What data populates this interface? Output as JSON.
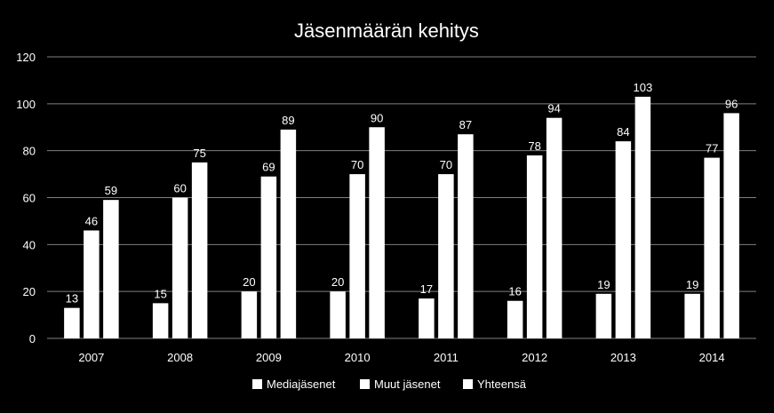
{
  "chart_data": {
    "type": "bar",
    "title": "Jäsenmäärän kehitys",
    "xlabel": "",
    "ylabel": "",
    "ylim": [
      0,
      120
    ],
    "yticks": [
      0,
      20,
      40,
      60,
      80,
      100,
      120
    ],
    "grid": true,
    "legend_position": "bottom",
    "categories": [
      "2007",
      "2008",
      "2009",
      "2010",
      "2011",
      "2012",
      "2013",
      "2014"
    ],
    "series": [
      {
        "name": "Mediajäsenet",
        "values": [
          13,
          15,
          20,
          20,
          17,
          16,
          19,
          19
        ]
      },
      {
        "name": "Muut jäsenet",
        "values": [
          46,
          60,
          69,
          70,
          70,
          78,
          84,
          77
        ]
      },
      {
        "name": "Yhteensä",
        "values": [
          59,
          75,
          89,
          90,
          87,
          94,
          103,
          96
        ]
      }
    ],
    "colors": {
      "background": "#000000",
      "bars": "#ffffff",
      "grid": "#808080",
      "text": "#ffffff"
    }
  }
}
